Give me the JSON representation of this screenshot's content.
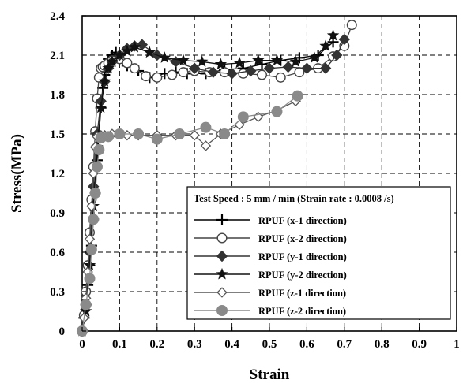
{
  "chart_data": {
    "type": "line",
    "title": "",
    "xlabel": "Strain",
    "ylabel": "Stress(MPa)",
    "xlim": [
      0,
      1
    ],
    "ylim": [
      0,
      2.4
    ],
    "xticks": [
      "0",
      "0.1",
      "0.2",
      "0.3",
      "0.4",
      "0.5",
      "0.6",
      "0.7",
      "0.8",
      "0.9",
      "1"
    ],
    "yticks": [
      "0",
      "0.3",
      "0.6",
      "0.9",
      "1.2",
      "1.5",
      "1.8",
      "2.1",
      "2.4"
    ],
    "grid": true,
    "legend_position": "bottom-right",
    "legend_title": "Test Speed : 5 mm / min (Strain rate : 0.0008 /s)",
    "series": [
      {
        "name": "RPUF (x-1 direction)",
        "marker": "plus",
        "color": "#000000",
        "x": [
          0,
          0.005,
          0.01,
          0.015,
          0.02,
          0.025,
          0.03,
          0.035,
          0.04,
          0.045,
          0.05,
          0.055,
          0.06,
          0.065,
          0.07,
          0.08,
          0.09,
          0.1,
          0.12,
          0.15,
          0.18,
          0.22,
          0.25,
          0.28,
          0.33,
          0.38,
          0.43,
          0.48,
          0.53,
          0.58,
          0.63,
          0.67
        ],
        "y": [
          0,
          0.1,
          0.2,
          0.35,
          0.5,
          0.65,
          0.85,
          1.05,
          1.3,
          1.5,
          1.7,
          1.85,
          1.95,
          2.02,
          2.07,
          2.1,
          2.12,
          2.1,
          2.02,
          1.98,
          1.93,
          1.96,
          1.97,
          1.96,
          1.96,
          1.99,
          2.0,
          2.03,
          2.06,
          2.08,
          2.1,
          2.2
        ]
      },
      {
        "name": "RPUF (x-2 direction)",
        "marker": "circle-open",
        "color": "#444444",
        "x": [
          0,
          0.005,
          0.01,
          0.015,
          0.02,
          0.025,
          0.03,
          0.035,
          0.04,
          0.045,
          0.05,
          0.055,
          0.06,
          0.07,
          0.08,
          0.1,
          0.12,
          0.14,
          0.17,
          0.2,
          0.24,
          0.27,
          0.3,
          0.34,
          0.38,
          0.43,
          0.48,
          0.53,
          0.58,
          0.63,
          0.67,
          0.7,
          0.72
        ],
        "y": [
          0,
          0.12,
          0.3,
          0.5,
          0.75,
          1.0,
          1.25,
          1.52,
          1.77,
          1.93,
          2.0,
          2.01,
          2.02,
          2.04,
          2.06,
          2.07,
          2.04,
          2.0,
          1.94,
          1.93,
          1.95,
          1.97,
          1.98,
          1.97,
          1.97,
          1.96,
          1.95,
          1.93,
          1.97,
          2.0,
          2.09,
          2.17,
          2.33
        ]
      },
      {
        "name": "RPUF (y-1 direction)",
        "marker": "diamond-filled",
        "color": "#333333",
        "x": [
          0,
          0.01,
          0.02,
          0.03,
          0.04,
          0.05,
          0.06,
          0.07,
          0.08,
          0.1,
          0.12,
          0.14,
          0.16,
          0.2,
          0.25,
          0.3,
          0.35,
          0.4,
          0.45,
          0.5,
          0.55,
          0.6,
          0.65,
          0.68,
          0.7
        ],
        "y": [
          0,
          0.2,
          0.6,
          1.1,
          1.5,
          1.75,
          1.9,
          2.0,
          2.05,
          2.1,
          2.15,
          2.17,
          2.18,
          2.1,
          2.05,
          2.0,
          1.97,
          1.96,
          1.98,
          2.0,
          2.01,
          2.0,
          2.0,
          2.1,
          2.22
        ]
      },
      {
        "name": "RPUF (y-2 direction)",
        "marker": "star",
        "color": "#111111",
        "x": [
          0,
          0.01,
          0.02,
          0.03,
          0.04,
          0.05,
          0.06,
          0.07,
          0.08,
          0.1,
          0.12,
          0.14,
          0.18,
          0.22,
          0.27,
          0.32,
          0.37,
          0.42,
          0.47,
          0.52,
          0.57,
          0.62,
          0.65,
          0.67
        ],
        "y": [
          0,
          0.15,
          0.5,
          0.95,
          1.4,
          1.7,
          1.9,
          2.0,
          2.05,
          2.1,
          2.13,
          2.16,
          2.12,
          2.08,
          2.06,
          2.05,
          2.03,
          2.04,
          2.06,
          2.06,
          2.05,
          2.08,
          2.17,
          2.25
        ]
      },
      {
        "name": "RPUF (z-1 direction)",
        "marker": "diamond-open",
        "color": "#555555",
        "x": [
          0,
          0.005,
          0.01,
          0.015,
          0.02,
          0.025,
          0.03,
          0.035,
          0.04,
          0.05,
          0.06,
          0.08,
          0.1,
          0.12,
          0.15,
          0.2,
          0.25,
          0.3,
          0.33,
          0.37,
          0.42,
          0.47,
          0.52,
          0.57
        ],
        "y": [
          0,
          0.1,
          0.25,
          0.45,
          0.7,
          0.95,
          1.2,
          1.4,
          1.48,
          1.49,
          1.49,
          1.5,
          1.5,
          1.49,
          1.49,
          1.49,
          1.49,
          1.49,
          1.41,
          1.5,
          1.57,
          1.63,
          1.68,
          1.75
        ]
      },
      {
        "name": "RPUF (z-2 direction)",
        "marker": "circle-filled",
        "color": "#8a8a8a",
        "x": [
          0,
          0.01,
          0.02,
          0.025,
          0.03,
          0.035,
          0.04,
          0.045,
          0.05,
          0.07,
          0.1,
          0.15,
          0.2,
          0.26,
          0.33,
          0.38,
          0.43,
          0.52,
          0.575
        ],
        "y": [
          0,
          0.2,
          0.4,
          0.62,
          0.85,
          1.05,
          1.25,
          1.38,
          1.47,
          1.48,
          1.5,
          1.5,
          1.46,
          1.5,
          1.55,
          1.5,
          1.63,
          1.67,
          1.79
        ]
      }
    ]
  }
}
